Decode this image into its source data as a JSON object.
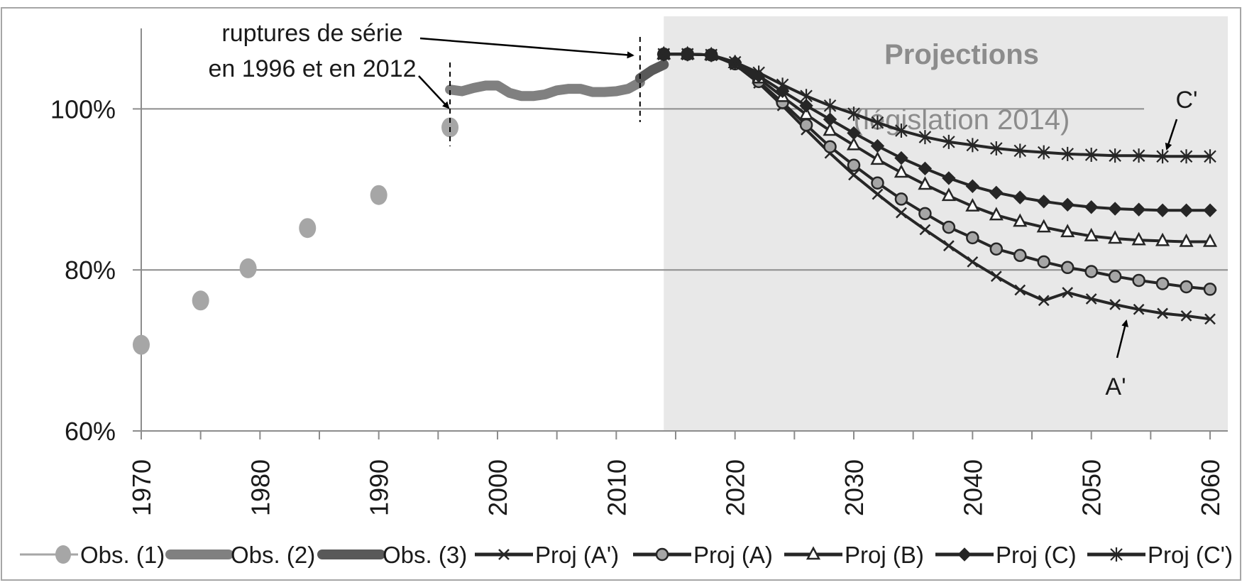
{
  "chart_data": {
    "type": "line",
    "title": "",
    "xlabel": "",
    "ylabel": "",
    "xlim": [
      1970,
      2060
    ],
    "ylim": [
      0.6,
      1.1
    ],
    "grid": true,
    "x_ticks": [
      "1970",
      "1980",
      "1990",
      "2000",
      "2010",
      "2020",
      "2030",
      "2040",
      "2050",
      "2060"
    ],
    "y_ticks": [
      "60%",
      "80%",
      "100%"
    ],
    "legend_position": "bottom",
    "projection_band": {
      "from": 2014,
      "to": 2061,
      "label": "Projections",
      "sublabel": "(législation 2014)"
    },
    "annotations": {
      "breaks": {
        "text_line1": "ruptures de série",
        "text_line2": "en 1996 et en 2012",
        "years": [
          1996,
          2012
        ]
      },
      "c_prime": "C'",
      "a_prime": "A'"
    },
    "series": [
      {
        "name": "Obs. (1)",
        "style": "dot",
        "x": [
          1970,
          1975,
          1979,
          1984,
          1990,
          1996
        ],
        "y": [
          0.707,
          0.762,
          0.802,
          0.852,
          0.893,
          0.977
        ]
      },
      {
        "name": "Obs. (2)",
        "style": "thick",
        "x": [
          1996,
          1997,
          1998,
          1999,
          2000,
          2001,
          2002,
          2003,
          2004,
          2005,
          2006,
          2007,
          2008,
          2009,
          2010,
          2011,
          2012
        ],
        "y": [
          1.024,
          1.022,
          1.026,
          1.029,
          1.029,
          1.02,
          1.016,
          1.016,
          1.018,
          1.023,
          1.025,
          1.025,
          1.021,
          1.021,
          1.022,
          1.025,
          1.033
        ]
      },
      {
        "name": "Obs. (3)",
        "style": "thick-dark",
        "x": [
          2012,
          2013,
          2014
        ],
        "y": [
          1.038,
          1.048,
          1.055
        ]
      },
      {
        "name": "Proj (A')",
        "style": "x",
        "x": [
          2014,
          2016,
          2018,
          2020,
          2022,
          2024,
          2026,
          2028,
          2030,
          2032,
          2034,
          2036,
          2038,
          2040,
          2042,
          2044,
          2046,
          2048,
          2050,
          2052,
          2054,
          2056,
          2058,
          2060
        ],
        "y": [
          1.068,
          1.068,
          1.067,
          1.055,
          1.032,
          1.004,
          0.974,
          0.945,
          0.918,
          0.894,
          0.871,
          0.85,
          0.83,
          0.81,
          0.792,
          0.775,
          0.762,
          0.772,
          0.764,
          0.757,
          0.751,
          0.746,
          0.743,
          0.739
        ]
      },
      {
        "name": "Proj (A)",
        "style": "circle",
        "x": [
          2014,
          2016,
          2018,
          2020,
          2022,
          2024,
          2026,
          2028,
          2030,
          2032,
          2034,
          2036,
          2038,
          2040,
          2042,
          2044,
          2046,
          2048,
          2050,
          2052,
          2054,
          2056,
          2058,
          2060
        ],
        "y": [
          1.068,
          1.068,
          1.067,
          1.056,
          1.034,
          1.008,
          0.98,
          0.953,
          0.93,
          0.908,
          0.888,
          0.87,
          0.853,
          0.84,
          0.826,
          0.818,
          0.81,
          0.803,
          0.798,
          0.792,
          0.787,
          0.783,
          0.779,
          0.776
        ]
      },
      {
        "name": "Proj (B)",
        "style": "triangle",
        "x": [
          2014,
          2016,
          2018,
          2020,
          2022,
          2024,
          2026,
          2028,
          2030,
          2032,
          2034,
          2036,
          2038,
          2040,
          2042,
          2044,
          2046,
          2048,
          2050,
          2052,
          2054,
          2056,
          2058,
          2060
        ],
        "y": [
          1.068,
          1.068,
          1.067,
          1.057,
          1.038,
          1.015,
          0.993,
          0.973,
          0.955,
          0.937,
          0.921,
          0.906,
          0.892,
          0.879,
          0.868,
          0.86,
          0.853,
          0.847,
          0.842,
          0.839,
          0.837,
          0.836,
          0.835,
          0.835
        ]
      },
      {
        "name": "Proj (C)",
        "style": "diamond",
        "x": [
          2014,
          2016,
          2018,
          2020,
          2022,
          2024,
          2026,
          2028,
          2030,
          2032,
          2034,
          2036,
          2038,
          2040,
          2042,
          2044,
          2046,
          2048,
          2050,
          2052,
          2054,
          2056,
          2058,
          2060
        ],
        "y": [
          1.068,
          1.068,
          1.067,
          1.058,
          1.041,
          1.022,
          1.004,
          0.987,
          0.97,
          0.954,
          0.939,
          0.926,
          0.914,
          0.904,
          0.896,
          0.89,
          0.885,
          0.881,
          0.878,
          0.876,
          0.875,
          0.874,
          0.874,
          0.874
        ]
      },
      {
        "name": "Proj (C')",
        "style": "asterisk",
        "x": [
          2014,
          2016,
          2018,
          2020,
          2022,
          2024,
          2026,
          2028,
          2030,
          2032,
          2034,
          2036,
          2038,
          2040,
          2042,
          2044,
          2046,
          2048,
          2050,
          2052,
          2054,
          2056,
          2058,
          2060
        ],
        "y": [
          1.068,
          1.068,
          1.067,
          1.058,
          1.045,
          1.03,
          1.016,
          1.004,
          0.994,
          0.983,
          0.973,
          0.965,
          0.959,
          0.955,
          0.951,
          0.948,
          0.946,
          0.944,
          0.943,
          0.942,
          0.942,
          0.941,
          0.941,
          0.941
        ]
      }
    ],
    "colors": {
      "obs1": "#a6a6a6",
      "obs2": "#808080",
      "obs3": "#595959",
      "proj_line": "#262626",
      "band": "#e8e8e8",
      "grid": "#8c8c8c",
      "circle_fill": "#a6a6a6"
    }
  }
}
